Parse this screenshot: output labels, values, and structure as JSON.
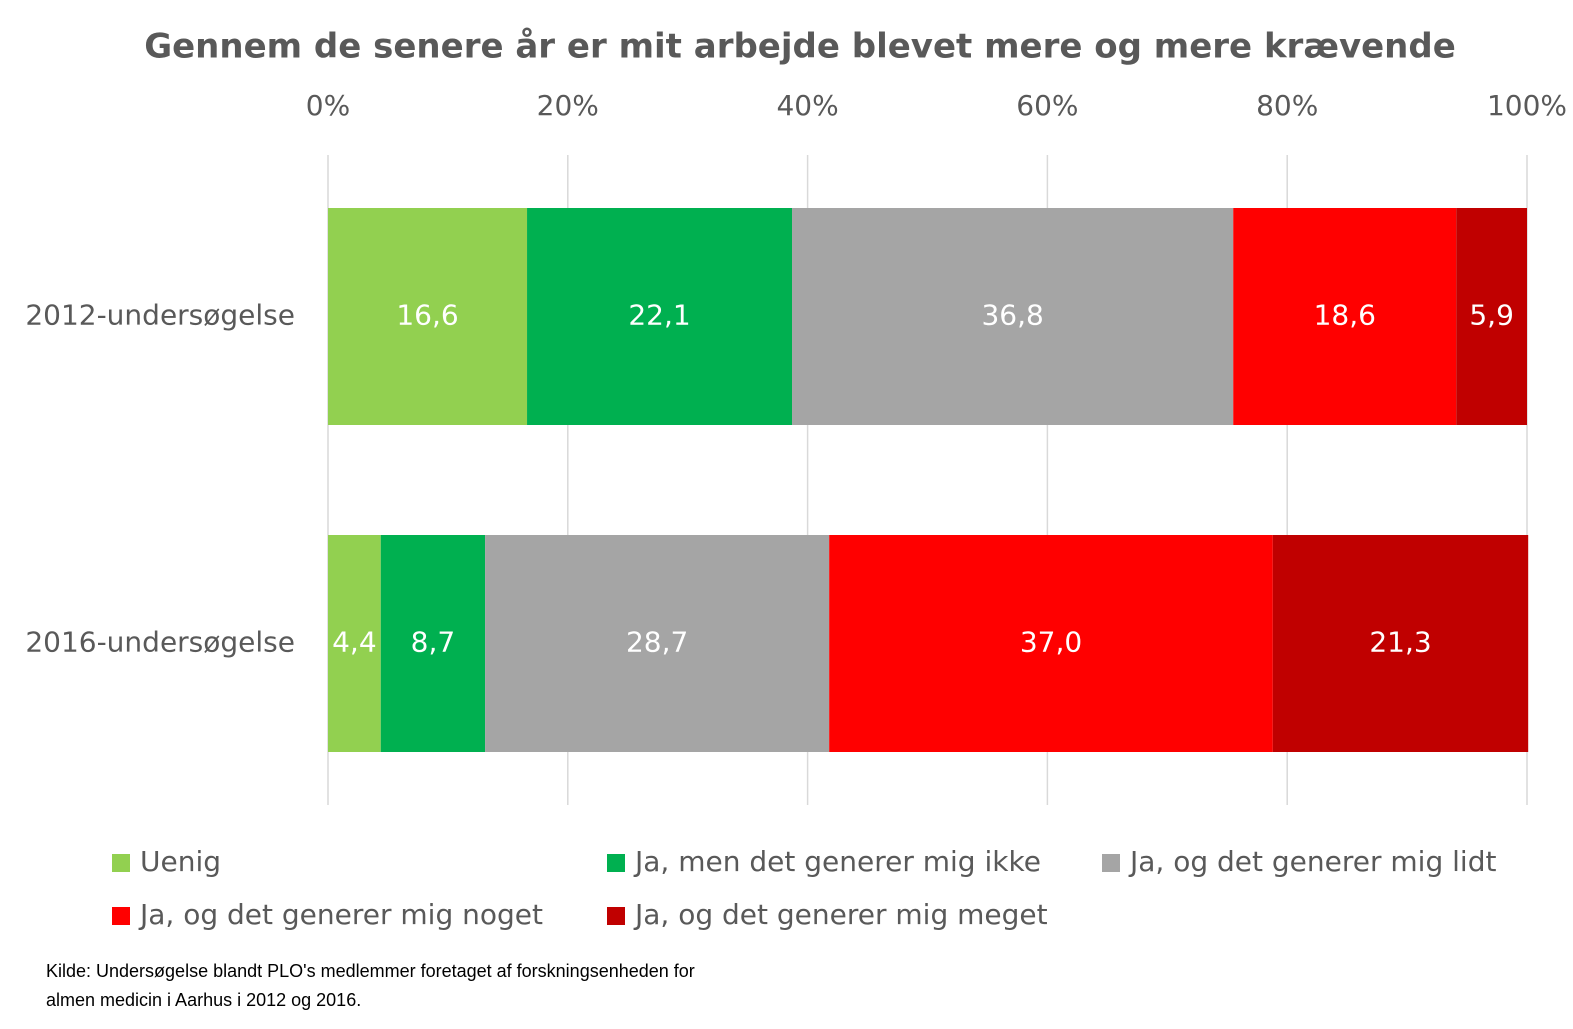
{
  "chart_data": {
    "type": "stacked-bar-horizontal",
    "title": "Gennem de senere år er mit arbejde blevet mere og mere krævende",
    "categories": [
      "2012-undersøgelse",
      "2016-undersøgelse"
    ],
    "series": [
      {
        "name": "Uenig",
        "color": "#92d050",
        "values": [
          16.6,
          4.4
        ],
        "value_labels": [
          "16,6",
          "4,4"
        ]
      },
      {
        "name": "Ja, men det generer mig ikke",
        "color": "#00b050",
        "values": [
          22.1,
          8.7
        ],
        "value_labels": [
          "22,1",
          "8,7"
        ]
      },
      {
        "name": "Ja, og det generer mig lidt",
        "color": "#a5a5a5",
        "values": [
          36.8,
          28.7
        ],
        "value_labels": [
          "36,8",
          "28,7"
        ]
      },
      {
        "name": "Ja, og det generer mig noget",
        "color": "#ff0000",
        "values": [
          18.6,
          37.0
        ],
        "value_labels": [
          "18,6",
          "37,0"
        ]
      },
      {
        "name": "Ja, og det generer mig meget",
        "color": "#c00000",
        "values": [
          5.9,
          21.3
        ],
        "value_labels": [
          "5,9",
          "21,3"
        ]
      }
    ],
    "xlim": [
      0,
      100
    ],
    "xticks": [
      {
        "value": 0,
        "label": "0%"
      },
      {
        "value": 20,
        "label": "20%"
      },
      {
        "value": 40,
        "label": "40%"
      },
      {
        "value": 60,
        "label": "60%"
      },
      {
        "value": 80,
        "label": "80%"
      },
      {
        "value": 100,
        "label": "100%"
      }
    ],
    "grid": true,
    "legend": "bottom",
    "source": [
      "Kilde: Undersøgelse blandt PLO's medlemmer foretaget af forskningsenheden for",
      "almen medicin i Aarhus i 2012 og 2016."
    ]
  }
}
